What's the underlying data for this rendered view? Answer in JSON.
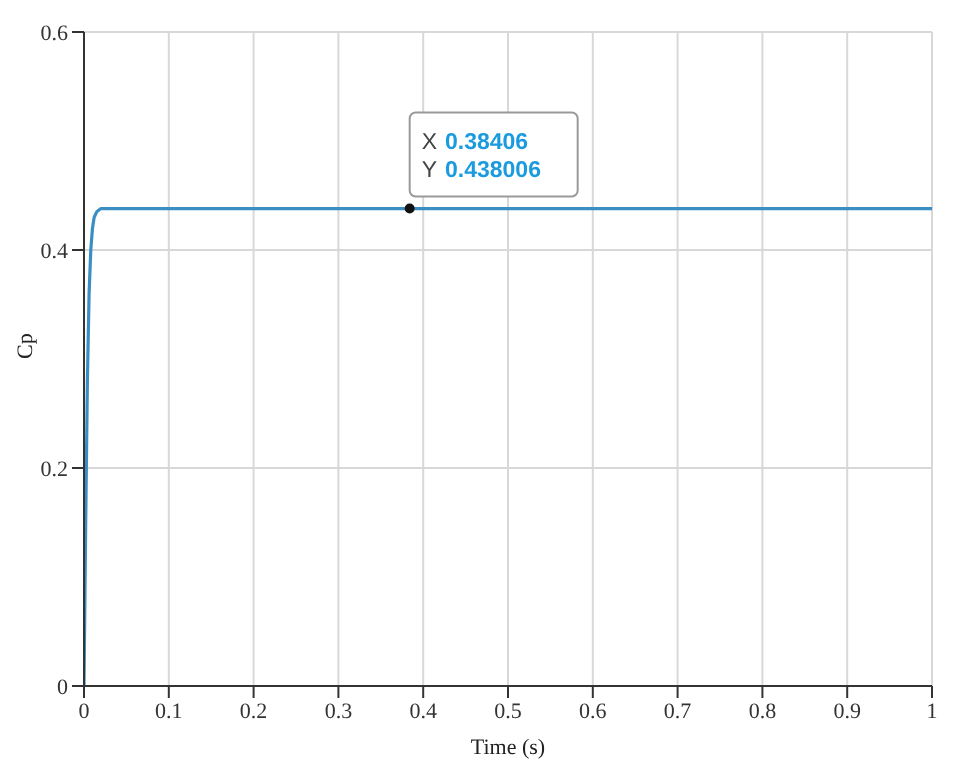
{
  "chart_data": {
    "type": "line",
    "xlabel": "Time (s)",
    "ylabel": "Cp",
    "x": [
      0,
      0.002,
      0.004,
      0.006,
      0.008,
      0.01,
      0.012,
      0.015,
      0.02,
      0.03,
      0.38406,
      1
    ],
    "series": [
      {
        "color": "#3b8ec4",
        "values": [
          0,
          0.15,
          0.28,
          0.36,
          0.4,
          0.42,
          0.43,
          0.435,
          0.438,
          0.438,
          0.438,
          0.438
        ]
      }
    ],
    "xlim": [
      0,
      1
    ],
    "xticks": [
      0,
      0.1,
      0.2,
      0.3,
      0.4,
      0.5,
      0.6,
      0.7,
      0.8,
      0.9,
      1
    ],
    "ylim": [
      0,
      0.6
    ],
    "yticks": [
      0,
      0.2,
      0.4,
      0.6
    ],
    "grid": true,
    "marker": "none",
    "line_style": "solid",
    "annotations": [
      {
        "text": "X 0.38406\nY 0.438006",
        "x": 0.38406,
        "y": 0.438006
      }
    ]
  }
}
